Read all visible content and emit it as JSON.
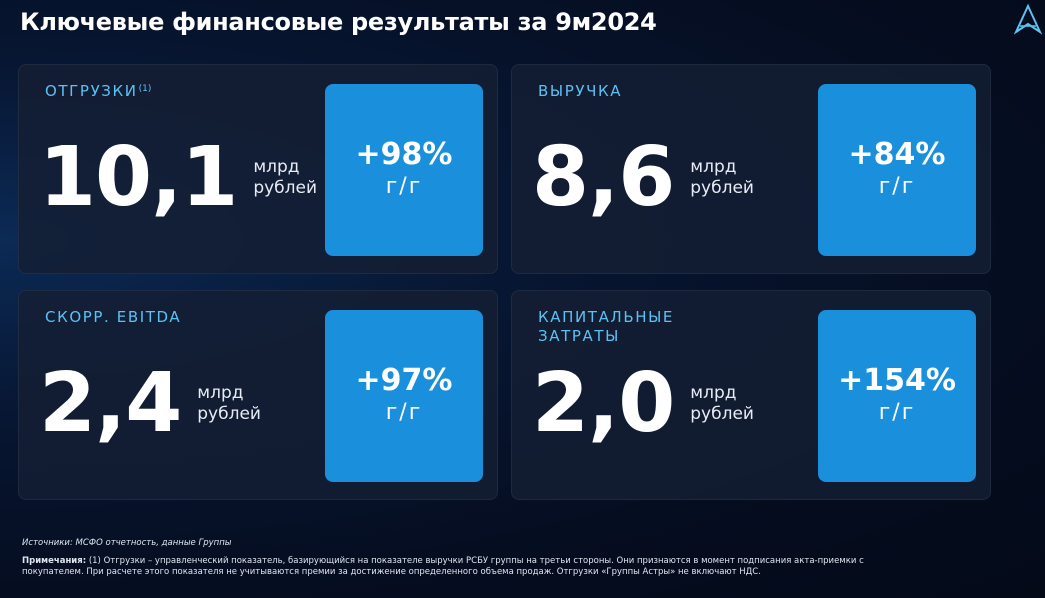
{
  "header": {
    "title": "Ключевые финансовые результаты за 9м2024"
  },
  "cards": [
    {
      "label": "ОТГРУЗКИ",
      "label_note": "(1)",
      "value": "10,1",
      "unit_lines": [
        "млрд",
        "рублей"
      ],
      "change": "+98%",
      "change_basis": "г/г"
    },
    {
      "label": "ВЫРУЧКА",
      "value": "8,6",
      "unit_lines": [
        "млрд",
        "рублей"
      ],
      "change": "+84%",
      "change_basis": "г/г"
    },
    {
      "label": "СКОРР. EBITDA",
      "value": "2,4",
      "unit_lines": [
        "млрд",
        "рублей"
      ],
      "change": "+97%",
      "change_basis": "г/г"
    },
    {
      "label": "КАПИТАЛЬНЫЕ ЗАТРАТЫ",
      "value": "2,0",
      "unit_lines": [
        "млрд",
        "рублей"
      ],
      "change": "+154%",
      "change_basis": "г/г"
    }
  ],
  "footer": {
    "sources": "Источники: МСФО отчетность, данные Группы",
    "notes_label": "Примечания:",
    "notes_text": "(1) Отгрузки – управленческий показатель, базирующийся на показателе выручки РСБУ группы на третьи стороны. Они признаются в момент подписания акта-приемки с покупателем. При расчете этого показателя не учитываются премии за достижение определенного объема продаж. Отгрузки «Группы Астры» не включают НДС."
  }
}
